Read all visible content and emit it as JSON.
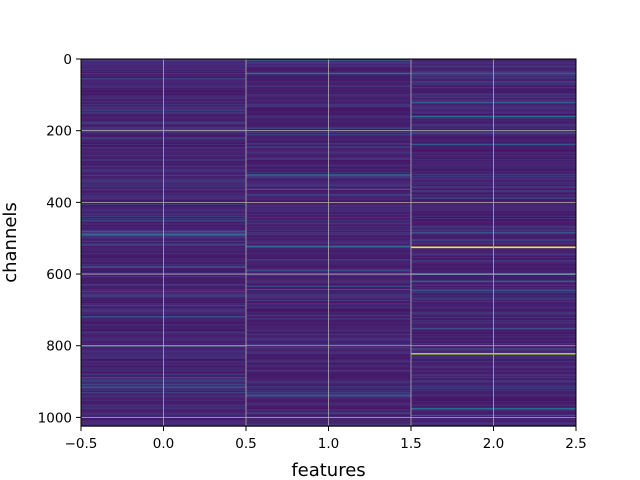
{
  "chart_data": {
    "type": "heatmap",
    "xlabel": "features",
    "ylabel": "channels",
    "xlim": [
      -0.5,
      2.5
    ],
    "ylim": [
      1024,
      0
    ],
    "y_inverted": true,
    "xticks": [
      -0.5,
      0.0,
      0.5,
      1.0,
      1.5,
      2.0,
      2.5
    ],
    "xtick_labels": [
      "−0.5",
      "0.0",
      "0.5",
      "1.0",
      "1.5",
      "2.0",
      "2.5"
    ],
    "yticks": [
      0,
      200,
      400,
      600,
      800,
      1000
    ],
    "ytick_labels": [
      "0",
      "200",
      "400",
      "600",
      "800",
      "1000"
    ],
    "grid": true,
    "colormap": "viridis",
    "n_channels": 1024,
    "features": [
      0,
      1,
      2
    ],
    "base_level": 0.1,
    "highlights": [
      {
        "feature": 0,
        "channel": 490,
        "value": 0.35
      },
      {
        "feature": 0,
        "channel": 580,
        "value": 0.25
      },
      {
        "feature": 0,
        "channel": 800,
        "value": 0.3
      },
      {
        "feature": 0,
        "channel": 915,
        "value": 0.25
      },
      {
        "feature": 1,
        "channel": 40,
        "value": 0.35
      },
      {
        "feature": 1,
        "channel": 523,
        "value": 0.35
      },
      {
        "feature": 2,
        "channel": 40,
        "value": 0.3
      },
      {
        "feature": 2,
        "channel": 160,
        "value": 0.35
      },
      {
        "feature": 2,
        "channel": 525,
        "value": 1.0
      },
      {
        "feature": 2,
        "channel": 600,
        "value": 0.35
      },
      {
        "feature": 2,
        "channel": 620,
        "value": 0.3
      },
      {
        "feature": 2,
        "channel": 822,
        "value": 0.85
      },
      {
        "feature": 2,
        "channel": 975,
        "value": 0.35
      }
    ]
  }
}
